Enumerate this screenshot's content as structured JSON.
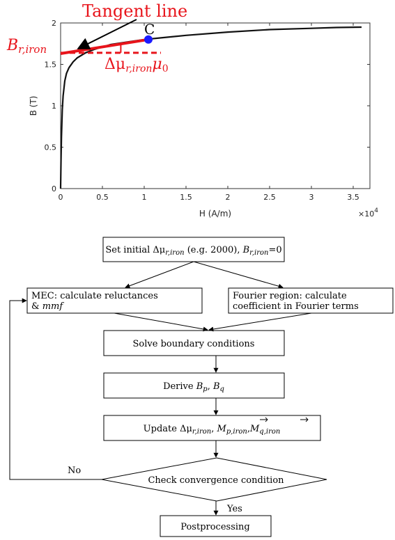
{
  "chart_data": {
    "type": "line",
    "xlabel": "H (A/m)",
    "ylabel": "B (T)",
    "x_multiplier_label": "×10",
    "x_multiplier_exp": "4",
    "xlim": [
      0,
      3.7
    ],
    "ylim": [
      0,
      2
    ],
    "x_ticks": [
      {
        "v": 0,
        "label": "0"
      },
      {
        "v": 0.5,
        "label": "0.5"
      },
      {
        "v": 1,
        "label": "1"
      },
      {
        "v": 1.5,
        "label": "1.5"
      },
      {
        "v": 2,
        "label": "2"
      },
      {
        "v": 2.5,
        "label": "2.5"
      },
      {
        "v": 3,
        "label": "3"
      },
      {
        "v": 3.5,
        "label": "3.5"
      }
    ],
    "y_ticks": [
      {
        "v": 0,
        "label": "0"
      },
      {
        "v": 0.5,
        "label": "0.5"
      },
      {
        "v": 1,
        "label": "1"
      },
      {
        "v": 1.5,
        "label": "1.5"
      },
      {
        "v": 2,
        "label": "2"
      }
    ],
    "series": [
      {
        "color": "#111111",
        "x": [
          0,
          0.005,
          0.01,
          0.02,
          0.03,
          0.05,
          0.07,
          0.1,
          0.15,
          0.2,
          0.3,
          0.4,
          0.5,
          0.6,
          0.8,
          1.0,
          1.2,
          1.5,
          2.0,
          2.5,
          3.0,
          3.3,
          3.6
        ],
        "y": [
          0,
          0.35,
          0.62,
          0.95,
          1.12,
          1.3,
          1.39,
          1.46,
          1.53,
          1.58,
          1.64,
          1.68,
          1.71,
          1.74,
          1.77,
          1.8,
          1.82,
          1.85,
          1.89,
          1.92,
          1.935,
          1.945,
          1.95
        ]
      }
    ],
    "tangent_line": {
      "x": [
        0,
        1.05
      ],
      "y": [
        1.63,
        1.8
      ],
      "color": "#e8141b"
    },
    "baseline_dashed": {
      "x": [
        0,
        1.2
      ],
      "y": [
        1.64,
        1.64
      ],
      "color": "#e8141b"
    },
    "slope_marker": {
      "x": 0.72,
      "y_top": 1.74,
      "y_bottom": 1.64
    },
    "point_c": {
      "x": 1.05,
      "y": 1.8,
      "label": "C",
      "color": "#1a1aff"
    },
    "annotations": {
      "tangent": "Tangent line",
      "b_main": "B",
      "b_sub": "r,iron",
      "dmu_delta": "Δμ",
      "dmu_sub": "r,iron",
      "dmu_mu": "μ",
      "dmu_zero": "0"
    }
  },
  "flowchart": {
    "set_initial": {
      "t1": "Set initial Δμ",
      "t1_sub": "r,iron",
      "t2": " (e.g. 2000), ",
      "t3": "B",
      "t3_sub": "r,iron",
      "t4": "=0"
    },
    "mec": {
      "line1": "MEC: calculate reluctances",
      "line2a": "& ",
      "line2b": "mmf"
    },
    "fourier": {
      "line1": "Fourier region: calculate",
      "line2": "coefficient in Fourier terms"
    },
    "solve": "Solve boundary conditions",
    "derive": {
      "t1": "Derive ",
      "b1": "B",
      "b1_sub": "p",
      "sep": ", ",
      "b2": "B",
      "b2_sub": "q"
    },
    "update": {
      "t1": "Update Δμ",
      "t1_sub": "r,iron",
      "sep1": ", ",
      "m1": "M",
      "m1_sub": "p,iron",
      "sep2": ",",
      "m2": "M",
      "m2_sub": "q,iron"
    },
    "check": "Check convergence condition",
    "no_label": "No",
    "yes_label": "Yes",
    "post": "Postprocessing"
  }
}
